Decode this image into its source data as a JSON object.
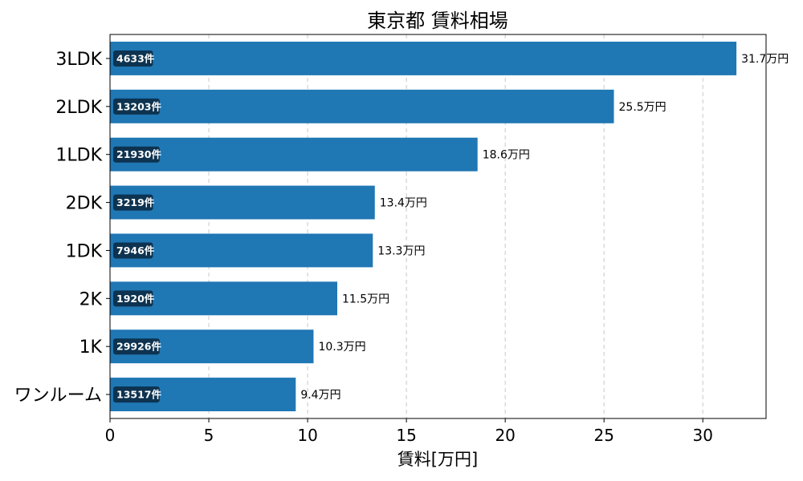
{
  "chart_data": {
    "type": "bar",
    "orientation": "horizontal",
    "title": "東京都 賃料相場",
    "xlabel": "賃料[万円]",
    "ylabel": "",
    "xlim": [
      0,
      33.2
    ],
    "xticks": [
      0,
      5,
      10,
      15,
      20,
      25,
      30
    ],
    "grid": "vertical-dashed",
    "bar_color": "#1f77b4",
    "count_badge_color": "#0d3350",
    "categories": [
      "3LDK",
      "2LDK",
      "1LDK",
      "2DK",
      "1DK",
      "2K",
      "1K",
      "ワンルーム"
    ],
    "values": [
      31.7,
      25.5,
      18.6,
      13.4,
      13.3,
      11.5,
      10.3,
      9.4
    ],
    "value_labels": [
      "31.7万円",
      "25.5万円",
      "18.6万円",
      "13.4万円",
      "13.3万円",
      "11.5万円",
      "10.3万円",
      "9.4万円"
    ],
    "count_labels": [
      "4633件",
      "13203件",
      "21930件",
      "3219件",
      "7946件",
      "1920件",
      "29926件",
      "13517件"
    ]
  }
}
